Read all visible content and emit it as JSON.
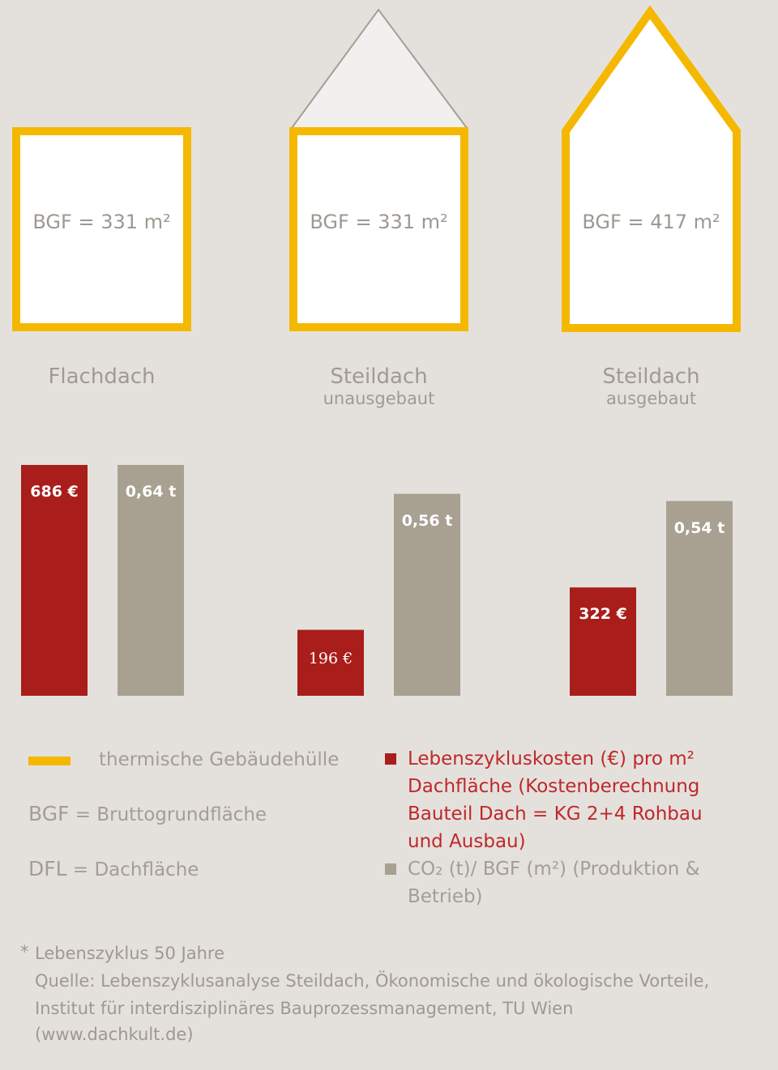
{
  "colors": {
    "background": "#e4e1dd",
    "envelope": "#f5b800",
    "cost": "#a91e1a",
    "co2": "#a8a192",
    "roof_fill": "#f2f0ee",
    "text_grey": "#a09a93",
    "text_red": "#c0282a"
  },
  "houses": [
    {
      "name": "Flachdach",
      "sub": "",
      "bgf": "BGF = 331 m²"
    },
    {
      "name": "Steildach",
      "sub": "unausgebaut",
      "bgf": "BGF = 331 m²"
    },
    {
      "name": "Steildach",
      "sub": "ausgebaut",
      "bgf": "BGF = 417 m²"
    }
  ],
  "chart_data": {
    "type": "bar",
    "categories": [
      "Flachdach",
      "Steildach unausgebaut",
      "Steildach ausgebaut"
    ],
    "series": [
      {
        "name": "Lebenszykluskosten (€) pro m² Dachfläche",
        "unit": "€",
        "values": [
          686,
          196,
          322
        ],
        "labels": [
          "686 €",
          "196  €",
          "322 €"
        ]
      },
      {
        "name": "CO₂ (t)/ BGF (m²)",
        "unit": "t",
        "values": [
          0.64,
          0.56,
          0.54
        ],
        "labels": [
          "0,64 t",
          "0,56 t",
          "0,54 t"
        ]
      }
    ]
  },
  "legend": {
    "envelope": "thermische Gebäudehülle",
    "bgf_abbr": "BGF",
    "bgf_def": "= Bruttogrundfläche",
    "dfl_abbr": "DFL",
    "dfl_def": "= Dachfläche",
    "cost_lines": [
      "Lebenszykluskosten (€) pro m²",
      "Dachfläche (Kostenberechnung",
      "Bauteil Dach = KG 2+4 Rohbau",
      "und Ausbau)"
    ],
    "co2_lines": [
      "CO₂ (t)/ BGF (m²) (Produktion &",
      "Betrieb)"
    ]
  },
  "footnote": {
    "star": "*",
    "line1": "Lebenszyklus 50 Jahre",
    "line2": "Quelle: Lebenszyklusanalyse Steildach, Ökonomische und ökologische Vorteile,",
    "line3": "Institut für interdisziplinäres  Bauprozessmanagement, TU Wien",
    "line4": "(www.dachkult.de)"
  }
}
